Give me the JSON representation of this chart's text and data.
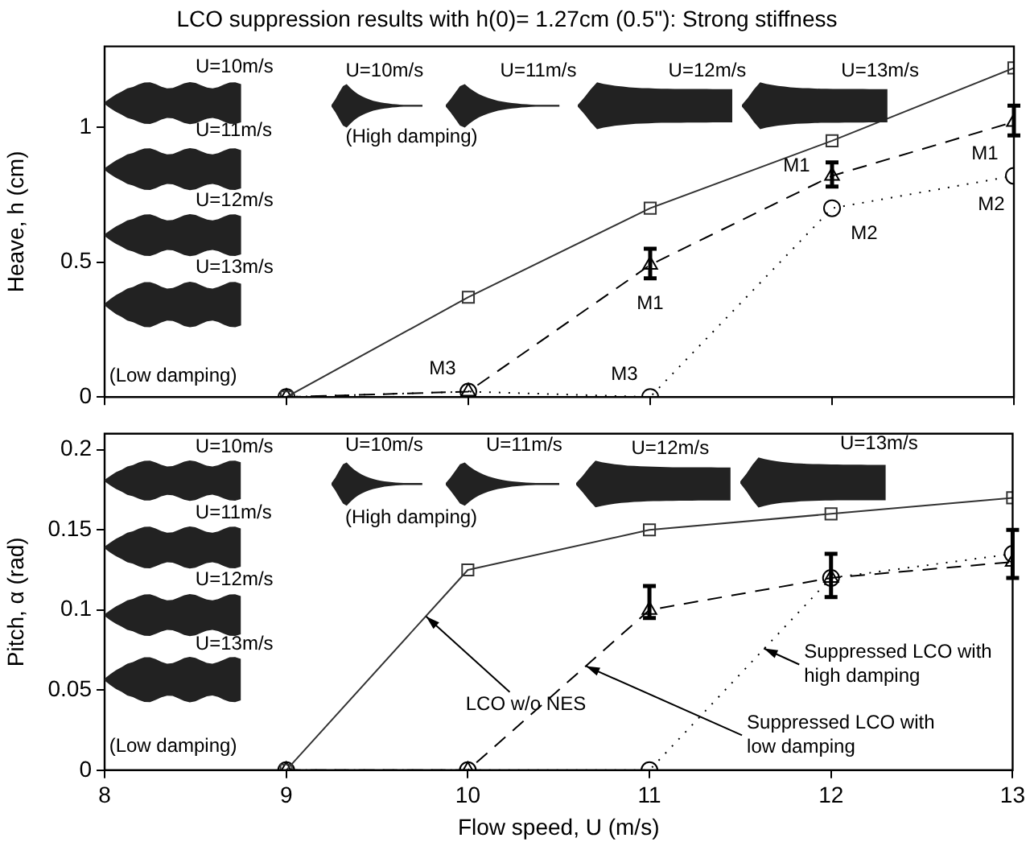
{
  "chart_data": [
    {
      "type": "line",
      "title": "LCO suppression results with h(0)= 1.27cm (0.5\"): Strong stiffness",
      "ylabel": "Heave, h (cm)",
      "x": [
        9,
        10,
        11,
        12,
        13
      ],
      "xlim": [
        8,
        13
      ],
      "xticks": [
        8,
        9,
        10,
        11,
        12,
        13
      ],
      "ylim": [
        0,
        1.3
      ],
      "yticks": [
        0,
        0.5,
        1
      ],
      "tick_labels": "y",
      "grid": false,
      "legend": false,
      "series": [
        {
          "color": "#333333",
          "marker": "square",
          "line_style": "solid",
          "values": [
            0,
            0.37,
            0.7,
            0.95,
            1.22
          ]
        },
        {
          "color": "#000000",
          "marker": "circle",
          "line_style": "dotted",
          "values": [
            0,
            0.02,
            0,
            0.7,
            0.82
          ]
        },
        {
          "color": "#000000",
          "marker": "triangle",
          "line_style": "dashed",
          "values": [
            0,
            0.02,
            0.49,
            0.82,
            1.02
          ],
          "errors": [
            null,
            null,
            [
              0.44,
              0.55
            ],
            [
              0.78,
              0.87
            ],
            [
              0.97,
              1.08
            ]
          ]
        }
      ],
      "annotations": [
        "U=10m/s",
        "U=11m/s",
        "U=12m/s",
        "U=13m/s",
        "(Low damping)",
        "U=10m/s",
        "U=11m/s",
        "U=12m/s",
        "U=13m/s",
        "(High damping)",
        {
          "text": "M1",
          "x": 11,
          "y": 0.49
        },
        {
          "text": "M1",
          "x": 12,
          "y": 0.82
        },
        {
          "text": "M1",
          "x": 13,
          "y": 1.02
        },
        {
          "text": "M2",
          "x": 12,
          "y": 0.7
        },
        {
          "text": "M2",
          "x": 13,
          "y": 0.82
        },
        {
          "text": "M3",
          "x": 10,
          "y": 0.02
        },
        {
          "text": "M3",
          "x": 11,
          "y": 0
        }
      ]
    },
    {
      "type": "line",
      "xlabel": "Flow speed, U (m/s)",
      "ylabel": "Pitch, α (rad)",
      "x": [
        9,
        10,
        11,
        12,
        13
      ],
      "xlim": [
        8,
        13
      ],
      "xticks": [
        8,
        9,
        10,
        11,
        12,
        13
      ],
      "ylim": [
        0,
        0.21
      ],
      "yticks": [
        0,
        0.05,
        0.1,
        0.15,
        0.2
      ],
      "grid": false,
      "legend": false,
      "series": [
        {
          "color": "#333333",
          "marker": "square",
          "line_style": "solid",
          "values": [
            0,
            0.125,
            0.15,
            0.16,
            0.17
          ]
        },
        {
          "color": "#000000",
          "marker": "circle",
          "line_style": "dotted",
          "values": [
            0,
            0,
            0,
            0.12,
            0.135
          ]
        },
        {
          "color": "#000000",
          "marker": "triangle",
          "line_style": "dashed",
          "values": [
            0,
            0,
            0.1,
            0.12,
            0.13
          ],
          "errors": [
            null,
            null,
            [
              0.095,
              0.115
            ],
            [
              0.108,
              0.135
            ],
            [
              0.12,
              0.15
            ]
          ]
        }
      ],
      "annotations": [
        "U=10m/s",
        "U=11m/s",
        "U=12m/s",
        "U=13m/s",
        "(Low damping)",
        "U=10m/s",
        "U=11m/s",
        "U=12m/s",
        "U=13m/s",
        "(High damping)",
        {
          "text": "LCO w/o NES",
          "x": 9.77,
          "y": 0.096
        },
        {
          "text": "Suppressed LCO with low damping",
          "x": 10.65,
          "y": 0.065
        },
        {
          "text": "Suppressed LCO with high damping",
          "x": 11.63,
          "y": 0.076
        }
      ]
    }
  ]
}
